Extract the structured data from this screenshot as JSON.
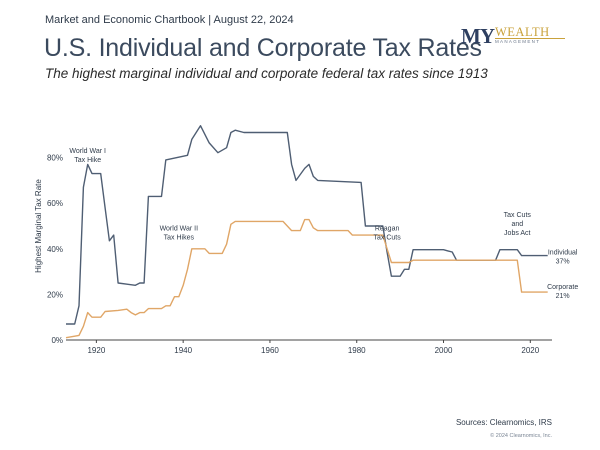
{
  "header": {
    "meta": "Market and Economic Chartbook | August 22, 2024",
    "title": "U.S. Individual and Corporate Tax Rates",
    "subtitle": "The highest marginal individual and corporate federal tax rates since 1913"
  },
  "logo": {
    "my": "MY",
    "wealth": "WEALTH",
    "management": "MANAGEMENT"
  },
  "footer": {
    "sources": "Sources: Clearnomics, IRS",
    "copyright": "© 2024 Clearnomics, Inc."
  },
  "colors": {
    "individual": "#4f5e73",
    "corporate": "#e0a667",
    "axis": "#444444"
  },
  "chart_data": {
    "type": "line",
    "title": "U.S. Individual and Corporate Tax Rates",
    "ylabel": "Highest Marginal Tax Rate",
    "xlabel": "",
    "xlim": [
      1913,
      2025
    ],
    "ylim": [
      0,
      100
    ],
    "x_ticks": [
      1920,
      1940,
      1960,
      1980,
      2000,
      2020
    ],
    "y_ticks": [
      0,
      20,
      40,
      60,
      80
    ],
    "y_tick_labels": [
      "0%",
      "20%",
      "40%",
      "60%",
      "80%"
    ],
    "grid": false,
    "annotations": [
      {
        "lines": [
          "World War I",
          "Tax Hike"
        ],
        "x": 1918,
        "y": 82
      },
      {
        "lines": [
          "World War II",
          "Tax Hikes"
        ],
        "x": 1939,
        "y": 48
      },
      {
        "lines": [
          "Reagan",
          "Tax Cuts"
        ],
        "x": 1987,
        "y": 48
      },
      {
        "lines": [
          "Tax Cuts",
          "and",
          "Jobs Act"
        ],
        "x": 2017,
        "y": 54
      }
    ],
    "end_labels": [
      {
        "series": "Individual",
        "lines": [
          "Individual",
          "37%"
        ]
      },
      {
        "series": "Corporate",
        "lines": [
          "Corporate",
          "21%"
        ]
      }
    ],
    "series": [
      {
        "name": "Individual",
        "points": [
          [
            1913,
            7
          ],
          [
            1915,
            7
          ],
          [
            1916,
            15
          ],
          [
            1917,
            67
          ],
          [
            1918,
            77
          ],
          [
            1919,
            73
          ],
          [
            1921,
            73
          ],
          [
            1922,
            58
          ],
          [
            1923,
            43.5
          ],
          [
            1924,
            46
          ],
          [
            1925,
            25
          ],
          [
            1929,
            24
          ],
          [
            1930,
            25
          ],
          [
            1931,
            25
          ],
          [
            1932,
            63
          ],
          [
            1935,
            63
          ],
          [
            1936,
            79
          ],
          [
            1941,
            81
          ],
          [
            1942,
            88
          ],
          [
            1944,
            94
          ],
          [
            1946,
            86.45
          ],
          [
            1948,
            82.13
          ],
          [
            1950,
            84.36
          ],
          [
            1951,
            91
          ],
          [
            1952,
            92
          ],
          [
            1954,
            91
          ],
          [
            1964,
            91
          ],
          [
            1965,
            77
          ],
          [
            1966,
            70
          ],
          [
            1968,
            75.25
          ],
          [
            1969,
            77
          ],
          [
            1970,
            71.75
          ],
          [
            1971,
            70
          ],
          [
            1981,
            69.13
          ],
          [
            1982,
            50
          ],
          [
            1986,
            50
          ],
          [
            1987,
            38.5
          ],
          [
            1988,
            28
          ],
          [
            1990,
            28
          ],
          [
            1991,
            31
          ],
          [
            1992,
            31
          ],
          [
            1993,
            39.6
          ],
          [
            2000,
            39.6
          ],
          [
            2001,
            39.1
          ],
          [
            2002,
            38.6
          ],
          [
            2003,
            35
          ],
          [
            2012,
            35
          ],
          [
            2013,
            39.6
          ],
          [
            2017,
            39.6
          ],
          [
            2018,
            37
          ],
          [
            2024,
            37
          ]
        ]
      },
      {
        "name": "Corporate",
        "points": [
          [
            1913,
            1
          ],
          [
            1916,
            2
          ],
          [
            1917,
            6
          ],
          [
            1918,
            12
          ],
          [
            1919,
            10
          ],
          [
            1921,
            10
          ],
          [
            1922,
            12.5
          ],
          [
            1925,
            13
          ],
          [
            1927,
            13.5
          ],
          [
            1928,
            12
          ],
          [
            1929,
            11
          ],
          [
            1930,
            12
          ],
          [
            1931,
            12
          ],
          [
            1932,
            13.75
          ],
          [
            1935,
            13.75
          ],
          [
            1936,
            15
          ],
          [
            1937,
            15
          ],
          [
            1938,
            19
          ],
          [
            1939,
            19
          ],
          [
            1940,
            24
          ],
          [
            1941,
            31
          ],
          [
            1942,
            40
          ],
          [
            1945,
            40
          ],
          [
            1946,
            38
          ],
          [
            1949,
            38
          ],
          [
            1950,
            42
          ],
          [
            1951,
            50.75
          ],
          [
            1952,
            52
          ],
          [
            1963,
            52
          ],
          [
            1964,
            50
          ],
          [
            1965,
            48
          ],
          [
            1967,
            48
          ],
          [
            1968,
            52.8
          ],
          [
            1969,
            52.8
          ],
          [
            1970,
            49.2
          ],
          [
            1971,
            48
          ],
          [
            1978,
            48
          ],
          [
            1979,
            46
          ],
          [
            1986,
            46
          ],
          [
            1987,
            40
          ],
          [
            1988,
            34
          ],
          [
            1992,
            34
          ],
          [
            1993,
            35
          ],
          [
            2017,
            35
          ],
          [
            2018,
            21
          ],
          [
            2024,
            21
          ]
        ]
      }
    ]
  }
}
